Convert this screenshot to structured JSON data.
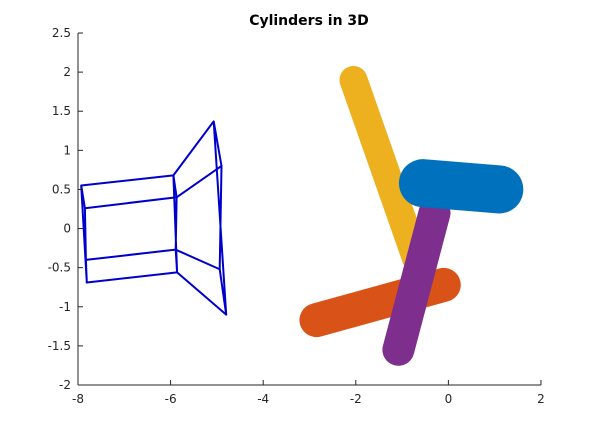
{
  "chart_data": {
    "type": "3d-surface",
    "title": "Cylinders in 3D",
    "xlabel": "",
    "ylabel": "",
    "xlim": [
      -8,
      2
    ],
    "ylim": [
      -2,
      2.5
    ],
    "x_ticks": [
      "-8",
      "-6",
      "-4",
      "-2",
      "0",
      "2"
    ],
    "y_ticks": [
      "-2",
      "-1.5",
      "-1",
      "-0.5",
      "0",
      "0.5",
      "1",
      "1.5",
      "2",
      "2.5"
    ],
    "grid": false,
    "view": "2D projection of 3D scene",
    "series": [
      {
        "style": "wireframe",
        "color": "#0000cc",
        "rings": [
          [
            [
              -7.93,
              0.55
            ],
            [
              -7.85,
              0.26
            ],
            [
              -7.83,
              -0.4
            ],
            [
              -7.81,
              -0.69
            ],
            [
              -7.95,
              0.0
            ]
          ],
          [
            [
              -5.94,
              0.68
            ],
            [
              -5.87,
              0.4
            ],
            [
              -5.89,
              -0.27
            ],
            [
              -5.86,
              -0.56
            ],
            [
              -6.0,
              0.05
            ]
          ],
          [
            [
              -5.07,
              1.37
            ],
            [
              -4.9,
              0.8
            ],
            [
              -4.94,
              -0.52
            ],
            [
              -4.8,
              -1.1
            ],
            [
              -5.2,
              0.2
            ]
          ]
        ],
        "edges": [
          [
            [
              -7.93,
              0.55
            ],
            [
              -5.94,
              0.68
            ]
          ],
          [
            [
              -7.85,
              0.26
            ],
            [
              -5.87,
              0.4
            ]
          ],
          [
            [
              -7.83,
              -0.4
            ],
            [
              -5.89,
              -0.27
            ]
          ],
          [
            [
              -7.81,
              -0.69
            ],
            [
              -5.86,
              -0.56
            ]
          ],
          [
            [
              -5.94,
              0.68
            ],
            [
              -5.07,
              1.37
            ]
          ],
          [
            [
              -5.87,
              0.4
            ],
            [
              -4.9,
              0.8
            ]
          ],
          [
            [
              -5.89,
              -0.27
            ],
            [
              -4.94,
              -0.52
            ]
          ],
          [
            [
              -5.86,
              -0.56
            ],
            [
              -4.8,
              -1.1
            ]
          ]
        ]
      },
      {
        "style": "solid",
        "color": "#EDB120",
        "axis": [
          [
            -2.05,
            1.9
          ],
          [
            -0.7,
            -0.38
          ]
        ],
        "radius_px": 14
      },
      {
        "style": "solid",
        "color": "#D95319",
        "axis": [
          [
            -2.85,
            -1.17
          ],
          [
            -0.1,
            -0.72
          ]
        ],
        "radius_px": 17
      },
      {
        "style": "solid",
        "color": "#7E2F8E",
        "axis": [
          [
            -0.3,
            0.2
          ],
          [
            -1.08,
            -1.55
          ]
        ],
        "radius_px": 16
      },
      {
        "style": "solid",
        "color": "#0072BD",
        "axis": [
          [
            -0.55,
            0.58
          ],
          [
            1.1,
            0.5
          ]
        ],
        "radius_px": 24
      }
    ]
  }
}
